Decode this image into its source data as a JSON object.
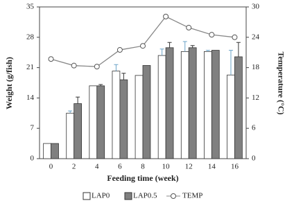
{
  "chart_data": {
    "type": "bar",
    "x_label": "Feeding time (week)",
    "y_label": "Weight (g/fish)",
    "y2_label": "Temperature (°C)",
    "categories": [
      "0",
      "2",
      "4",
      "6",
      "8",
      "10",
      "12",
      "14",
      "16"
    ],
    "series": [
      {
        "name": "LAP0",
        "color": "#ffffff",
        "values": [
          3.5,
          10.5,
          16.8,
          20.2,
          19.2,
          23.8,
          24.7,
          24.7,
          19.3
        ],
        "errors": [
          0,
          0.5,
          0,
          1.5,
          0,
          1.5,
          2.3,
          0.3,
          5.7
        ]
      },
      {
        "name": "LAP0.5",
        "color": "#808080",
        "values": [
          3.5,
          12.7,
          16.8,
          18.2,
          21.5,
          25.6,
          25.6,
          25.0,
          23.5
        ],
        "errors": [
          0,
          1.5,
          0.3,
          1.5,
          0,
          1.2,
          0.5,
          0,
          3.3
        ]
      },
      {
        "name": "TEMP",
        "type": "line",
        "axis": "y2",
        "color": "#888888",
        "values": [
          19.7,
          18.4,
          18.2,
          21.5,
          22.3,
          28.1,
          25.9,
          24.5,
          24.0
        ]
      }
    ],
    "ylim": [
      0,
      35
    ],
    "yticks": [
      0,
      7,
      14,
      21,
      28,
      35
    ],
    "y2lim": [
      0,
      30
    ],
    "y2ticks": [
      0,
      6,
      12,
      18,
      24,
      30
    ],
    "grid": false,
    "legend": "bottom"
  }
}
